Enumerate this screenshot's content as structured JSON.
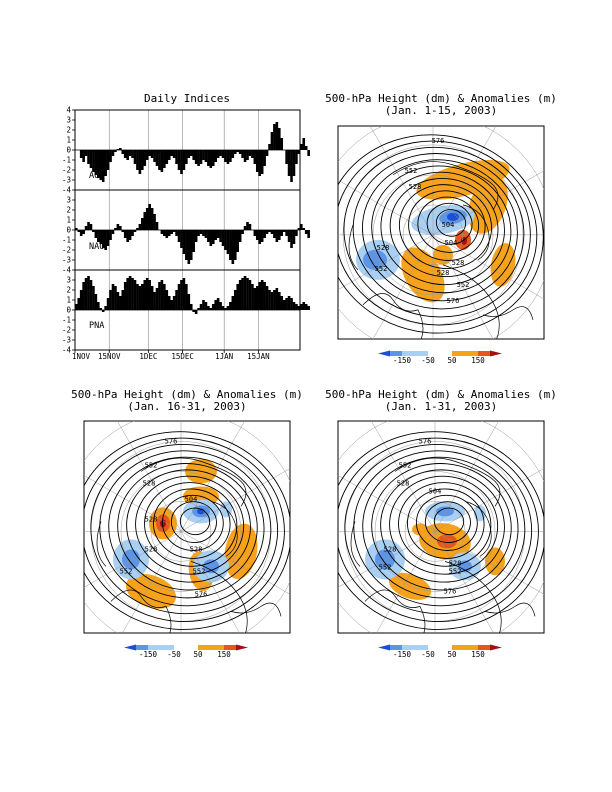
{
  "chart_data": [
    {
      "type": "bar",
      "title": "Daily Indices",
      "xlabel": "",
      "ylabel": "",
      "x_tick_labels": [
        "1NOV",
        "15NOV",
        "1DEC",
        "15DEC",
        "1JAN",
        "15JAN"
      ],
      "x_range": [
        "2002-11-01",
        "2003-01-31"
      ],
      "ylim": [
        -4,
        4
      ],
      "y_ticks": [
        4,
        3,
        2,
        1,
        0,
        -1,
        -2,
        -3,
        -4
      ],
      "y_tick_labels": [
        "4",
        "3",
        "2",
        "1",
        "0",
        "-1",
        "-2",
        "-3",
        "-4"
      ],
      "grid": true,
      "panels": [
        {
          "name": "AO",
          "label": "AO",
          "values": [
            0.0,
            0.0,
            -0.8,
            -1.2,
            -0.6,
            -1.4,
            -1.8,
            -2.2,
            -2.5,
            -2.8,
            -3.0,
            -3.2,
            -2.6,
            -2.0,
            -1.2,
            -0.6,
            -0.2,
            0.1,
            0.2,
            -0.4,
            -0.8,
            -1.0,
            -0.6,
            -0.8,
            -1.4,
            -2.0,
            -2.4,
            -2.0,
            -1.6,
            -1.0,
            -0.6,
            -0.8,
            -1.2,
            -1.6,
            -2.0,
            -2.2,
            -1.8,
            -1.4,
            -1.0,
            -0.6,
            -0.8,
            -1.4,
            -2.0,
            -2.4,
            -2.0,
            -1.4,
            -0.8,
            -0.6,
            -1.0,
            -1.4,
            -1.6,
            -1.4,
            -1.0,
            -1.2,
            -1.6,
            -1.8,
            -1.6,
            -1.2,
            -0.8,
            -0.6,
            -0.8,
            -1.2,
            -1.4,
            -1.2,
            -0.8,
            -0.4,
            -0.2,
            -0.4,
            -0.8,
            -1.2,
            -1.0,
            -0.6,
            -0.8,
            -1.4,
            -2.2,
            -2.6,
            -2.4,
            -1.6,
            -0.6,
            0.6,
            1.8,
            2.6,
            2.8,
            2.2,
            1.2,
            0.0,
            -1.4,
            -2.6,
            -3.2,
            -2.6,
            -1.4,
            -0.4,
            0.6,
            1.2,
            0.4,
            -0.6
          ]
        },
        {
          "name": "NAO",
          "label": "NAO",
          "values": [
            0.2,
            -0.2,
            -0.6,
            -0.4,
            0.4,
            0.8,
            0.6,
            -0.2,
            -0.8,
            -1.2,
            -1.4,
            -1.8,
            -2.0,
            -1.6,
            -1.0,
            -0.4,
            0.2,
            0.6,
            0.4,
            -0.2,
            -0.8,
            -1.2,
            -1.0,
            -0.6,
            -0.2,
            0.2,
            0.6,
            1.2,
            1.8,
            2.2,
            2.6,
            2.2,
            1.6,
            0.8,
            0.0,
            -0.4,
            -0.6,
            -0.8,
            -0.6,
            -0.4,
            -0.2,
            -0.6,
            -1.2,
            -1.8,
            -2.4,
            -3.0,
            -3.4,
            -3.0,
            -2.2,
            -1.2,
            -0.6,
            -0.4,
            -0.6,
            -0.8,
            -1.2,
            -1.6,
            -1.4,
            -1.0,
            -0.8,
            -1.2,
            -1.6,
            -2.0,
            -2.4,
            -3.0,
            -3.4,
            -3.0,
            -2.2,
            -1.2,
            -0.4,
            0.4,
            0.8,
            0.6,
            0.0,
            -0.6,
            -1.0,
            -1.4,
            -1.2,
            -0.8,
            -0.4,
            -0.2,
            -0.4,
            -0.8,
            -1.2,
            -1.0,
            -0.6,
            -0.2,
            -0.6,
            -1.2,
            -1.8,
            -1.4,
            -0.6,
            0.2,
            0.6,
            0.2,
            -0.4,
            -0.8
          ]
        },
        {
          "name": "PNA",
          "label": "PNA",
          "values": [
            0.6,
            1.2,
            2.0,
            2.8,
            3.2,
            3.4,
            3.0,
            2.4,
            1.6,
            0.8,
            0.2,
            -0.2,
            0.4,
            1.2,
            2.0,
            2.6,
            2.4,
            1.8,
            1.4,
            2.0,
            2.8,
            3.2,
            3.4,
            3.2,
            3.0,
            2.6,
            2.4,
            2.6,
            3.0,
            3.2,
            3.0,
            2.4,
            1.8,
            2.2,
            2.8,
            3.0,
            2.6,
            2.0,
            1.4,
            1.0,
            1.4,
            2.0,
            2.6,
            3.0,
            3.2,
            2.6,
            1.6,
            0.6,
            -0.2,
            -0.4,
            0.2,
            0.6,
            1.0,
            0.8,
            0.4,
            0.2,
            0.6,
            1.0,
            1.2,
            0.8,
            0.4,
            0.2,
            0.4,
            0.8,
            1.4,
            2.0,
            2.6,
            3.0,
            3.2,
            3.4,
            3.2,
            3.0,
            2.6,
            2.2,
            2.4,
            2.8,
            3.0,
            2.8,
            2.4,
            2.0,
            1.8,
            2.0,
            2.2,
            1.8,
            1.4,
            1.0,
            1.2,
            1.4,
            1.2,
            0.8,
            0.6,
            0.4,
            0.6,
            0.8,
            0.6,
            0.4
          ]
        }
      ]
    },
    {
      "type": "heatmap",
      "title": "500-hPa Height (dm) & Anomalies (m)",
      "subtitle": "(Jan. 1-15, 2003)",
      "contour_labels": [
        "576",
        "552",
        "528",
        "504",
        "528",
        "552",
        "576",
        "528",
        "552",
        "504",
        "528"
      ],
      "colorbar": {
        "ticks": [
          "-150",
          "-50",
          "50",
          "150"
        ]
      }
    },
    {
      "type": "heatmap",
      "title": "500-hPa Height (dm) & Anomalies (m)",
      "subtitle": "(Jan. 16-31, 2003)",
      "contour_labels": [
        "576",
        "552",
        "528",
        "528",
        "504",
        "528",
        "552",
        "552",
        "576",
        "528"
      ],
      "colorbar": {
        "ticks": [
          "-150",
          "-50",
          "50",
          "150"
        ]
      }
    },
    {
      "type": "heatmap",
      "title": "500-hPa Height (dm) & Anomalies (m)",
      "subtitle": "(Jan. 1-31, 2003)",
      "contour_labels": [
        "576",
        "552",
        "528",
        "504",
        "528",
        "552",
        "528",
        "552",
        "576"
      ],
      "colorbar": {
        "ticks": [
          "-150",
          "-50",
          "50",
          "150"
        ]
      }
    }
  ],
  "colors": {
    "neg_strong": "#1c4fd1",
    "neg_mid": "#5c95e6",
    "neg_light": "#a9cff2",
    "pos_light": "#f6a21c",
    "pos_mid": "#e4571a",
    "pos_strong": "#a3101c",
    "bars": "#000000"
  }
}
